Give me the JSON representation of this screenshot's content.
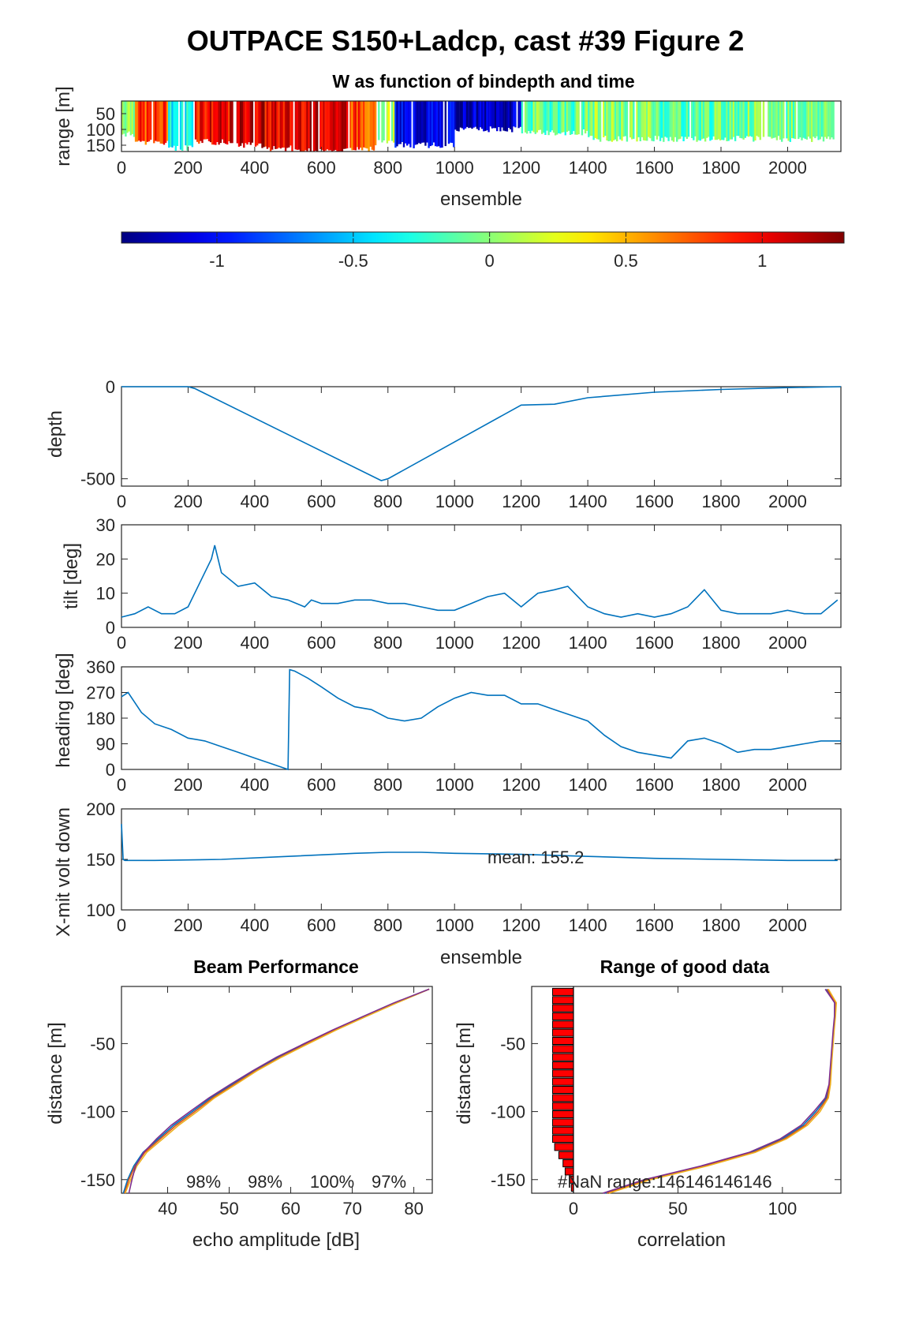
{
  "figure": {
    "title": "OUTPACE S150+Ladcp, cast #39 Figure 2",
    "colors": {
      "line": "#0072bd",
      "bar_fill": "#ff0000"
    }
  },
  "chart_data": [
    {
      "id": "w_image",
      "type": "heatmap",
      "title": "W as function of bindepth and time",
      "xlabel": "ensemble",
      "ylabel": "range [m]",
      "xticks": [
        "0",
        "200",
        "400",
        "600",
        "800",
        "1000",
        "1200",
        "1400",
        "1600",
        "1800",
        "2000"
      ],
      "yticks": [
        "50",
        "100",
        "150"
      ],
      "xlim": [
        0,
        2160
      ],
      "ylim": [
        170,
        10
      ],
      "y_reversed": true,
      "colormap": "jet",
      "segments": [
        {
          "x0": 0,
          "x1": 40,
          "w": 0.1,
          "depth": 115
        },
        {
          "x0": 40,
          "x1": 140,
          "w": 0.8,
          "depth": 140
        },
        {
          "x0": 140,
          "x1": 220,
          "w": -0.3,
          "depth": 160
        },
        {
          "x0": 220,
          "x1": 330,
          "w": 1.0,
          "depth": 140
        },
        {
          "x0": 330,
          "x1": 430,
          "w": 1.1,
          "depth": 150
        },
        {
          "x0": 430,
          "x1": 520,
          "w": 1.0,
          "depth": 160
        },
        {
          "x0": 520,
          "x1": 680,
          "w": 1.1,
          "depth": 170
        },
        {
          "x0": 680,
          "x1": 770,
          "w": 0.8,
          "depth": 160
        },
        {
          "x0": 770,
          "x1": 820,
          "w": 0.1,
          "depth": 140
        },
        {
          "x0": 820,
          "x1": 1000,
          "w": -1.1,
          "depth": 150
        },
        {
          "x0": 1000,
          "x1": 1200,
          "w": -1.2,
          "depth": 100
        },
        {
          "x0": 1200,
          "x1": 1400,
          "w": -0.1,
          "depth": 110
        },
        {
          "x0": 1400,
          "x1": 1600,
          "w": 0.0,
          "depth": 130
        },
        {
          "x0": 1600,
          "x1": 1800,
          "w": -0.1,
          "depth": 130
        },
        {
          "x0": 1800,
          "x1": 2140,
          "w": -0.05,
          "depth": 130
        }
      ]
    },
    {
      "id": "colorbar",
      "type": "colorbar",
      "ticks": [
        "-1",
        "-0.5",
        "0",
        "0.5",
        "1"
      ],
      "tick_values": [
        -1,
        -0.5,
        0,
        0.5,
        1
      ],
      "clim": [
        -1.35,
        1.3
      ]
    },
    {
      "id": "depth",
      "type": "line",
      "ylabel": "depth",
      "xticks": [
        "0",
        "200",
        "400",
        "600",
        "800",
        "1000",
        "1200",
        "1400",
        "1600",
        "1800",
        "2000"
      ],
      "yticks": [
        "0",
        "-500"
      ],
      "xlim": [
        0,
        2160
      ],
      "ylim": [
        -540,
        0
      ],
      "x": [
        0,
        200,
        220,
        780,
        800,
        1200,
        1300,
        1400,
        1600,
        1800,
        2000,
        2160
      ],
      "y": [
        0,
        0,
        -10,
        -510,
        -500,
        -100,
        -95,
        -60,
        -30,
        -15,
        -5,
        0
      ]
    },
    {
      "id": "tilt",
      "type": "line",
      "ylabel": "tilt [deg]",
      "xticks": [
        "0",
        "200",
        "400",
        "600",
        "800",
        "1000",
        "1200",
        "1400",
        "1600",
        "1800",
        "2000"
      ],
      "yticks": [
        "0",
        "10",
        "20",
        "30"
      ],
      "xlim": [
        0,
        2160
      ],
      "ylim": [
        0,
        30
      ],
      "x": [
        0,
        40,
        80,
        120,
        160,
        200,
        240,
        270,
        280,
        300,
        350,
        400,
        450,
        500,
        550,
        570,
        600,
        650,
        700,
        750,
        800,
        850,
        900,
        950,
        1000,
        1050,
        1100,
        1150,
        1200,
        1250,
        1300,
        1340,
        1380,
        1400,
        1450,
        1500,
        1550,
        1600,
        1650,
        1700,
        1750,
        1800,
        1850,
        1900,
        1950,
        2000,
        2050,
        2100,
        2150
      ],
      "y": [
        3,
        4,
        6,
        4,
        4,
        6,
        14,
        20,
        24,
        16,
        12,
        13,
        9,
        8,
        6,
        8,
        7,
        7,
        8,
        8,
        7,
        7,
        6,
        5,
        5,
        7,
        9,
        10,
        6,
        10,
        11,
        12,
        8,
        6,
        4,
        3,
        4,
        3,
        4,
        6,
        11,
        5,
        4,
        4,
        4,
        5,
        4,
        4,
        8
      ]
    },
    {
      "id": "heading",
      "type": "line",
      "ylabel": "heading [deg]",
      "xticks": [
        "0",
        "200",
        "400",
        "600",
        "800",
        "1000",
        "1200",
        "1400",
        "1600",
        "1800",
        "2000"
      ],
      "yticks": [
        "0",
        "90",
        "180",
        "270",
        "360"
      ],
      "xlim": [
        0,
        2160
      ],
      "ylim": [
        0,
        360
      ],
      "x": [
        0,
        20,
        60,
        100,
        150,
        200,
        250,
        300,
        350,
        400,
        450,
        500,
        505,
        520,
        560,
        600,
        650,
        700,
        750,
        800,
        850,
        900,
        950,
        1000,
        1050,
        1100,
        1150,
        1200,
        1250,
        1300,
        1350,
        1400,
        1450,
        1500,
        1550,
        1600,
        1650,
        1700,
        1750,
        1800,
        1850,
        1900,
        1950,
        2000,
        2050,
        2100,
        2160
      ],
      "y": [
        255,
        270,
        200,
        160,
        140,
        110,
        100,
        80,
        60,
        40,
        20,
        0,
        350,
        345,
        320,
        290,
        250,
        220,
        210,
        180,
        170,
        180,
        220,
        250,
        270,
        260,
        260,
        230,
        230,
        210,
        190,
        170,
        120,
        80,
        60,
        50,
        40,
        100,
        110,
        90,
        60,
        70,
        70,
        80,
        90,
        100,
        100
      ]
    },
    {
      "id": "xmit_volt",
      "type": "line",
      "ylabel": "X-mit volt down",
      "xlabel": "ensemble",
      "xticks": [
        "0",
        "200",
        "400",
        "600",
        "800",
        "1000",
        "1200",
        "1400",
        "1600",
        "1800",
        "2000"
      ],
      "yticks": [
        "100",
        "150",
        "200"
      ],
      "xlim": [
        0,
        2160
      ],
      "ylim": [
        100,
        200
      ],
      "x": [
        0,
        5,
        10,
        100,
        300,
        500,
        700,
        800,
        900,
        1000,
        1200,
        1400,
        1600,
        1800,
        2000,
        2150
      ],
      "y": [
        185,
        150,
        149,
        149,
        150,
        153,
        156,
        157,
        157,
        156,
        155,
        153,
        151,
        150,
        149,
        149
      ],
      "annotation": "mean: 155.2"
    },
    {
      "id": "beam_performance",
      "type": "line",
      "title": "Beam Performance",
      "xlabel": "echo amplitude [dB]",
      "ylabel": "distance [m]",
      "xticks": [
        "40",
        "50",
        "60",
        "70",
        "80"
      ],
      "yticks": [
        "-50",
        "-100",
        "-150"
      ],
      "xlim": [
        32.5,
        83
      ],
      "ylim": [
        -160,
        -8
      ],
      "percent_labels": [
        "98%",
        "98%",
        "100%",
        "97%"
      ],
      "y": [
        -160,
        -150,
        -140,
        -130,
        -120,
        -110,
        -100,
        -90,
        -80,
        -70,
        -60,
        -50,
        -40,
        -30,
        -20,
        -10
      ],
      "series": [
        {
          "color": "#0072bd",
          "x": [
            32.8,
            33.5,
            34.5,
            36,
            38.5,
            41,
            44,
            47,
            50.5,
            54,
            58,
            62.5,
            67,
            72,
            77,
            82.5
          ]
        },
        {
          "color": "#d95319",
          "x": [
            33,
            33.7,
            34.7,
            36.3,
            38.8,
            41.4,
            44.4,
            47.3,
            50.8,
            54.3,
            58.3,
            62.7,
            67.2,
            72.2,
            77.2,
            82.5
          ]
        },
        {
          "color": "#edb120",
          "x": [
            33.1,
            34,
            35,
            36.6,
            39.2,
            41.8,
            44.8,
            47.6,
            51.1,
            54.5,
            58.5,
            62.9,
            67.4,
            72.3,
            77.3,
            82.5
          ]
        },
        {
          "color": "#7e2f8e",
          "x": [
            33.7,
            34.2,
            34.8,
            36.1,
            38.2,
            40.6,
            43.6,
            46.7,
            50.2,
            53.8,
            57.7,
            62.2,
            66.8,
            71.8,
            76.8,
            82.5
          ]
        }
      ]
    },
    {
      "id": "range_good_data",
      "type": "bar",
      "title": "Range of good data",
      "xlabel": "correlation",
      "ylabel": "distance [m]",
      "xticks": [
        "0",
        "50",
        "100"
      ],
      "yticks": [
        "-50",
        "-100",
        "-150"
      ],
      "xlim": [
        -20,
        128
      ],
      "ylim": [
        -160,
        -8
      ],
      "annotation": "#NaN range:146146146146",
      "bars": {
        "bin_centers": [
          -12,
          -18,
          -24,
          -30,
          -36,
          -42,
          -48,
          -54,
          -60,
          -66,
          -72,
          -78,
          -84,
          -90,
          -96,
          -102,
          -108,
          -114,
          -120,
          -126,
          -132,
          -138,
          -144,
          -150,
          -156
        ],
        "values": [
          -10,
          -10,
          -10,
          -10,
          -10,
          -10,
          -10,
          -10,
          -10,
          -10,
          -10,
          -10,
          -10,
          -10,
          -10,
          -10,
          -10,
          -10,
          -10,
          -9,
          -7,
          -5,
          -4,
          -2,
          -1
        ]
      },
      "y": [
        -160,
        -150,
        -140,
        -130,
        -120,
        -110,
        -100,
        -90,
        -80,
        -70,
        -60,
        -50,
        -40,
        -30,
        -20,
        -10
      ],
      "series": [
        {
          "color": "#0072bd",
          "x": [
            15,
            35,
            62,
            85,
            100,
            110,
            116,
            121,
            122.5,
            123,
            123.5,
            124,
            124.5,
            125,
            125,
            121
          ]
        },
        {
          "color": "#d95319",
          "x": [
            16,
            36,
            63,
            86,
            101,
            111,
            117,
            121.5,
            122.7,
            123.2,
            123.6,
            124.1,
            124.6,
            125.2,
            125.4,
            121.5
          ]
        },
        {
          "color": "#edb120",
          "x": [
            17,
            37,
            64,
            87,
            102,
            112,
            118,
            122,
            123,
            123.4,
            123.8,
            124.3,
            124.8,
            125.4,
            125.8,
            122
          ]
        },
        {
          "color": "#7e2f8e",
          "x": [
            14,
            34,
            61,
            84,
            99,
            109,
            115,
            120.5,
            122.3,
            122.8,
            123.3,
            123.8,
            124.3,
            124.9,
            125,
            120.5
          ]
        }
      ]
    }
  ]
}
